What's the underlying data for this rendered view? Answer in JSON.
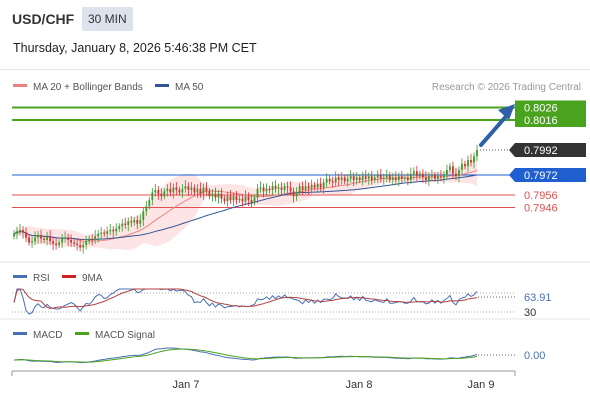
{
  "header": {
    "pair": "USD/CHF",
    "timeframe": "30 MIN",
    "datetime": "Thursday, January 8, 2026 5:46:38 PM CET"
  },
  "legend": {
    "ma20_bb": "MA 20 + Bollinger Bands",
    "ma50": "MA 50",
    "copyright": "Research © 2026 Trading Central",
    "rsi": "RSI",
    "rsi_ma": "9MA",
    "macd": "MACD",
    "macd_signal": "MACD Signal"
  },
  "colors": {
    "resistance": "#4aa31f",
    "support": "#e05050",
    "pivot": "#1f5fd0",
    "last_price": "#333333",
    "ma20": "#f08080",
    "ma50": "#2f5597",
    "candle_up": "#3a9a2a",
    "candle_down": "#d03030",
    "arrow": "#2f5fa8"
  },
  "levels": [
    {
      "value": 0.8026,
      "label": "0.8026",
      "type": "resistance"
    },
    {
      "value": 0.8016,
      "label": "0.8016",
      "type": "resistance"
    },
    {
      "value": 0.7992,
      "label": "0.7992",
      "type": "last"
    },
    {
      "value": 0.7972,
      "label": "0.7972",
      "type": "pivot"
    },
    {
      "value": 0.7956,
      "label": "0.7956",
      "type": "support"
    },
    {
      "value": 0.7946,
      "label": "0.7946",
      "type": "support"
    }
  ],
  "x_labels": [
    "Jan 7",
    "Jan 8",
    "Jan 9"
  ],
  "rsi": {
    "value_label": "63.91",
    "low_label": "30"
  },
  "macd": {
    "value_label": "0.00"
  },
  "chart_data": {
    "type": "candlestick",
    "symbol": "USD/CHF",
    "interval": "30 MIN",
    "ylim": [
      0.7908,
      0.8032
    ],
    "x_ticks": [
      "Jan 7",
      "Jan 8",
      "Jan 9"
    ],
    "series": [
      {
        "name": "MA 20 + Bollinger Bands"
      },
      {
        "name": "MA 50"
      }
    ],
    "close": [
      0.7925,
      0.7927,
      0.7928,
      0.7926,
      0.7922,
      0.7918,
      0.7919,
      0.7922,
      0.7924,
      0.7921,
      0.792,
      0.7923,
      0.7919,
      0.7917,
      0.7916,
      0.7918,
      0.7921,
      0.7922,
      0.792,
      0.7918,
      0.7917,
      0.7916,
      0.7914,
      0.7916,
      0.7919,
      0.7921,
      0.792,
      0.7923,
      0.7925,
      0.7926,
      0.7925,
      0.7927,
      0.7928,
      0.7927,
      0.7929,
      0.7931,
      0.7933,
      0.7932,
      0.7935,
      0.7934,
      0.7936,
      0.7933,
      0.7936,
      0.7943,
      0.7947,
      0.7952,
      0.7958,
      0.796,
      0.7957,
      0.7955,
      0.7959,
      0.7961,
      0.7958,
      0.7962,
      0.796,
      0.7958,
      0.7961,
      0.7963,
      0.796,
      0.7962,
      0.7958,
      0.7961,
      0.7957,
      0.7962,
      0.7959,
      0.7955,
      0.7957,
      0.7954,
      0.7957,
      0.7953,
      0.7951,
      0.7955,
      0.7952,
      0.7955,
      0.7952,
      0.7953,
      0.7951,
      0.7955,
      0.7952,
      0.795,
      0.7954,
      0.7961,
      0.7962,
      0.7959,
      0.7961,
      0.796,
      0.7963,
      0.7961,
      0.7962,
      0.796,
      0.7963,
      0.7962,
      0.7959,
      0.7955,
      0.7958,
      0.7963,
      0.796,
      0.7963,
      0.7961,
      0.7964,
      0.7962,
      0.7965,
      0.7962,
      0.7966,
      0.7969,
      0.7967,
      0.7966,
      0.797,
      0.7968,
      0.797,
      0.7967,
      0.7969,
      0.7971,
      0.7968,
      0.797,
      0.7968,
      0.7971,
      0.7969,
      0.7971,
      0.7968,
      0.797,
      0.7972,
      0.7969,
      0.797,
      0.7972,
      0.7968,
      0.797,
      0.7968,
      0.7971,
      0.7969,
      0.797,
      0.7968,
      0.7973,
      0.7975,
      0.7971,
      0.7973,
      0.797,
      0.7968,
      0.7971,
      0.7972,
      0.7969,
      0.7971,
      0.797,
      0.7972,
      0.7976,
      0.7979,
      0.7973,
      0.7971,
      0.7976,
      0.7981,
      0.7979,
      0.7984,
      0.7982,
      0.7987,
      0.7992
    ]
  }
}
